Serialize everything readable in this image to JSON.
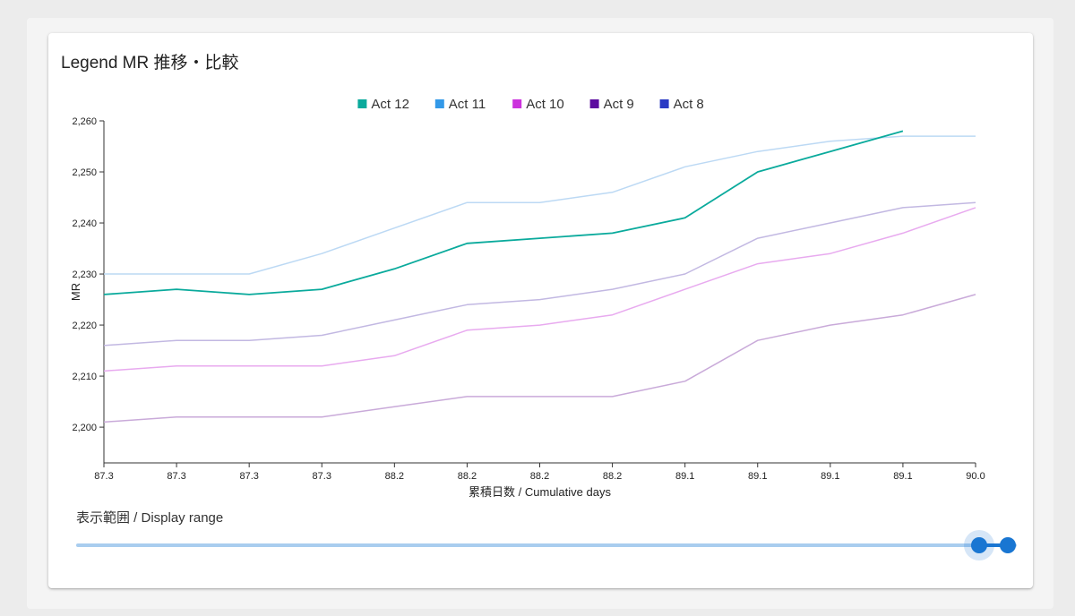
{
  "card": {
    "title": "Legend MR 推移・比較"
  },
  "range": {
    "label": "表示範囲 / Display range",
    "from": 0.96,
    "to": 0.99
  },
  "chart_data": {
    "type": "line",
    "xlabel": "累積日数 / Cumulative days",
    "ylabel": "MR",
    "ylim": [
      2193,
      2260
    ],
    "y_ticks": [
      2200,
      2210,
      2220,
      2230,
      2240,
      2250,
      2260
    ],
    "y_tick_labels": [
      "2,200",
      "2,210",
      "2,220",
      "2,230",
      "2,240",
      "2,250",
      "2,260"
    ],
    "x_tick_labels": [
      "87.3",
      "87.3",
      "87.3",
      "87.3",
      "88.2",
      "88.2",
      "88.2",
      "88.2",
      "89.1",
      "89.1",
      "89.1",
      "89.1",
      "90.0"
    ],
    "legend_position": "top-center",
    "grid": false,
    "legend": [
      {
        "name": "Act 12",
        "color": "#0aaa9c"
      },
      {
        "name": "Act 11",
        "color": "#3399e8"
      },
      {
        "name": "Act 10",
        "color": "#cc33dd"
      },
      {
        "name": "Act 9",
        "color": "#5c0ba0"
      },
      {
        "name": "Act 8",
        "color": "#2a3ac4"
      }
    ],
    "series": [
      {
        "name": "Act 12",
        "color": "#0aaa9c",
        "width": 1.8,
        "values": [
          2226,
          2227,
          2226,
          2227,
          2231,
          2236,
          2237,
          2238,
          2241,
          2250,
          2254,
          2258
        ]
      },
      {
        "name": "Act 11",
        "color": "#bcd9f4",
        "width": 1.5,
        "values": [
          2230,
          2230,
          2230,
          2234,
          2239,
          2244,
          2244,
          2246,
          2251,
          2254,
          2256,
          2257,
          2257
        ]
      },
      {
        "name": "Act 10",
        "color": "#e8aaef",
        "width": 1.5,
        "values": [
          2211,
          2212,
          2212,
          2212,
          2214,
          2219,
          2220,
          2222,
          2227,
          2232,
          2234,
          2238,
          2243
        ]
      },
      {
        "name": "Act 9",
        "color": "#c9aad9",
        "width": 1.5,
        "values": [
          2201,
          2202,
          2202,
          2202,
          2204,
          2206,
          2206,
          2206,
          2209,
          2217,
          2220,
          2222,
          2226
        ]
      },
      {
        "name": "Act 8",
        "color": "#c2b8e2",
        "width": 1.5,
        "values": [
          2216,
          2217,
          2217,
          2218,
          2221,
          2224,
          2225,
          2227,
          2230,
          2237,
          2240,
          2243,
          2244
        ]
      }
    ]
  }
}
